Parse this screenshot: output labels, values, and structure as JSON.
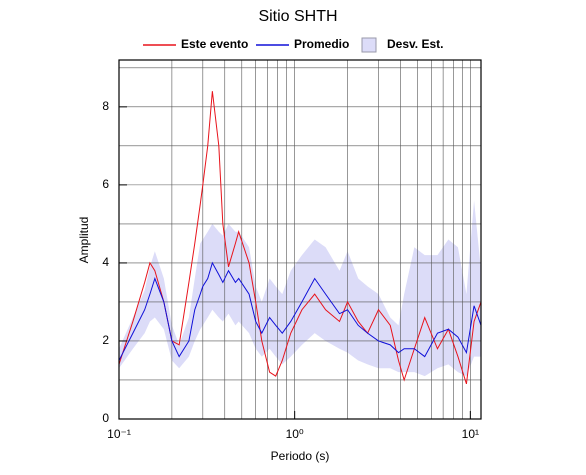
{
  "chart_data": {
    "type": "line",
    "title": "Sitio SHTH",
    "xlabel": "Periodo (s)",
    "ylabel": "Amplitud",
    "xscale": "log",
    "xlim": [
      0.1,
      11.5
    ],
    "ylim": [
      0,
      9.2
    ],
    "xticks": [
      {
        "value": 0.1,
        "label": "10⁻¹"
      },
      {
        "value": 1,
        "label": "10⁰"
      },
      {
        "value": 10,
        "label": "10¹"
      }
    ],
    "xminorticks": [
      0.2,
      0.3,
      0.4,
      0.5,
      0.6,
      0.7,
      0.8,
      0.9,
      2,
      3,
      4,
      5,
      6,
      7,
      8,
      9
    ],
    "yticks": [
      0,
      2,
      4,
      6,
      8
    ],
    "yminorticks": [
      1,
      3,
      5,
      7,
      9
    ],
    "grid": true,
    "x": [
      0.1,
      0.12,
      0.14,
      0.15,
      0.16,
      0.18,
      0.2,
      0.22,
      0.25,
      0.27,
      0.29,
      0.3,
      0.32,
      0.34,
      0.37,
      0.39,
      0.42,
      0.46,
      0.48,
      0.55,
      0.6,
      0.65,
      0.72,
      0.78,
      0.85,
      0.95,
      1.1,
      1.3,
      1.5,
      1.8,
      2.0,
      2.3,
      2.6,
      3.0,
      3.5,
      3.9,
      4.2,
      4.8,
      5.5,
      6.5,
      7.5,
      8.5,
      9.5,
      10.5,
      11.5
    ],
    "series": [
      {
        "name": "Este evento",
        "color": "#e8141c",
        "values": [
          1.4,
          2.5,
          3.5,
          4.0,
          3.8,
          3.0,
          2.0,
          1.9,
          3.5,
          4.5,
          5.5,
          6.0,
          7.0,
          8.4,
          7.0,
          5.0,
          3.9,
          4.5,
          4.8,
          4.0,
          3.0,
          2.0,
          1.2,
          1.1,
          1.5,
          2.2,
          2.8,
          3.2,
          2.8,
          2.5,
          3.0,
          2.5,
          2.2,
          2.8,
          2.4,
          1.5,
          1.0,
          1.8,
          2.6,
          1.8,
          2.3,
          1.6,
          0.9,
          2.5,
          3.0
        ]
      },
      {
        "name": "Promedio",
        "color": "#1010d8",
        "values": [
          1.5,
          2.2,
          2.8,
          3.2,
          3.6,
          3.0,
          2.0,
          1.6,
          2.0,
          2.8,
          3.2,
          3.4,
          3.6,
          4.0,
          3.7,
          3.5,
          3.8,
          3.5,
          3.6,
          3.2,
          2.5,
          2.2,
          2.6,
          2.4,
          2.2,
          2.5,
          3.0,
          3.6,
          3.2,
          2.7,
          2.8,
          2.4,
          2.2,
          2.0,
          1.9,
          1.7,
          1.8,
          1.8,
          1.6,
          2.2,
          2.3,
          2.1,
          1.7,
          2.9,
          2.4
        ]
      },
      {
        "name": "Desv. Est.",
        "color": "#dcdcf8",
        "lower": [
          1.3,
          1.8,
          2.2,
          2.5,
          2.6,
          2.3,
          1.5,
          1.3,
          1.6,
          2.0,
          2.3,
          2.4,
          2.6,
          2.8,
          2.6,
          2.5,
          2.7,
          2.4,
          2.5,
          2.2,
          1.8,
          1.6,
          1.8,
          1.6,
          1.4,
          1.6,
          1.9,
          2.2,
          2.0,
          1.8,
          1.7,
          1.5,
          1.4,
          1.3,
          1.3,
          1.2,
          1.2,
          1.2,
          1.1,
          1.3,
          1.4,
          1.2,
          1.1,
          1.6,
          1.6
        ],
        "upper": [
          1.8,
          2.6,
          3.3,
          3.9,
          4.3,
          3.6,
          2.4,
          1.9,
          2.6,
          3.6,
          4.5,
          4.6,
          4.8,
          5.0,
          4.8,
          4.7,
          5.0,
          4.8,
          4.8,
          4.4,
          3.4,
          3.0,
          3.6,
          3.4,
          3.2,
          3.8,
          4.2,
          4.6,
          4.4,
          3.8,
          4.3,
          3.6,
          3.4,
          3.2,
          2.6,
          2.4,
          3.2,
          4.4,
          4.2,
          4.2,
          4.6,
          4.4,
          3.2,
          5.6,
          3.8
        ]
      }
    ]
  }
}
